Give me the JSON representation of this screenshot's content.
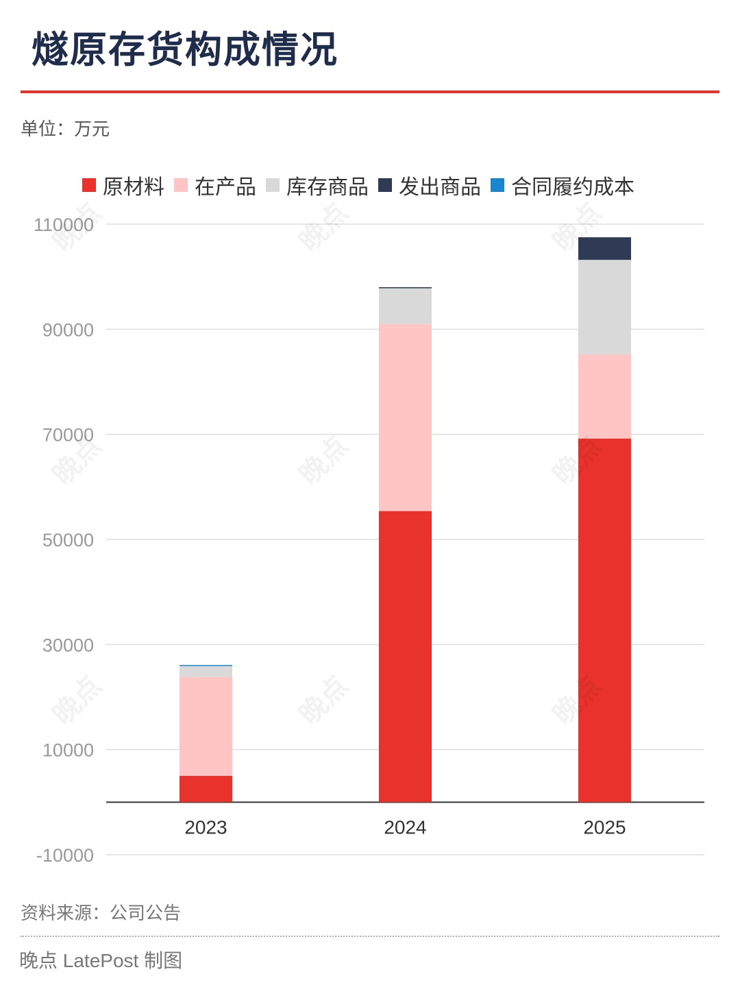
{
  "header": {
    "title": "燧原存货构成情况",
    "unit": "单位：万元"
  },
  "footer": {
    "source": "资料来源：公司公告",
    "credit": "晚点 LatePost 制图"
  },
  "watermark_text": "晚点",
  "colors": {
    "title": "#1f2d4d",
    "accent": "#e63329",
    "raw_materials": "#e8322b",
    "wip": "#ffc4c4",
    "stock_goods": "#d9d9d9",
    "shipped_goods": "#2f3a55",
    "contract_cost": "#1a86d0"
  },
  "chart_data": {
    "type": "bar",
    "stacked": true,
    "categories": [
      "2023",
      "2024",
      "2025"
    ],
    "series": [
      {
        "name": "原材料",
        "color": "#e8322b",
        "values": [
          5000,
          55400,
          69200
        ]
      },
      {
        "name": "在产品",
        "color": "#ffc4c4",
        "values": [
          18800,
          35600,
          16000
        ]
      },
      {
        "name": "库存商品",
        "color": "#d9d9d9",
        "values": [
          2100,
          6800,
          18000
        ]
      },
      {
        "name": "发出商品",
        "color": "#2f3a55",
        "values": [
          0,
          200,
          4300
        ]
      },
      {
        "name": "合同履约成本",
        "color": "#1a86d0",
        "values": [
          200,
          0,
          0
        ]
      }
    ],
    "ylim": [
      -10000,
      110000
    ],
    "yticks": [
      "110000",
      "90000",
      "70000",
      "50000",
      "30000",
      "10000",
      "-10000"
    ],
    "ytick_values": [
      110000,
      90000,
      70000,
      50000,
      30000,
      10000,
      -10000
    ],
    "grid": true,
    "legend": "top"
  }
}
